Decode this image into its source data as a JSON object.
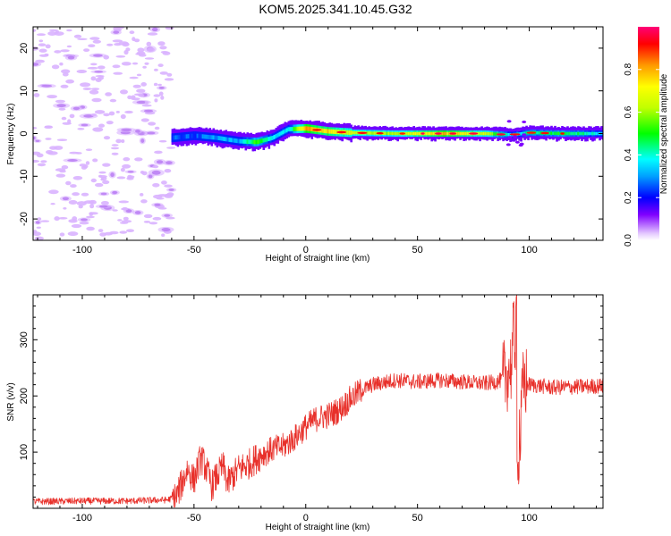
{
  "title": "KOM5.2025.341.10.45.G32",
  "chart_data": [
    {
      "type": "heatmap",
      "name": "spectrogram",
      "xlabel": "Height of straight line (km)",
      "ylabel": "Frequency (Hz)",
      "xlim": [
        -122,
        133
      ],
      "ylim": [
        -25,
        25
      ],
      "xticks": [
        -100,
        -50,
        0,
        50,
        100
      ],
      "yticks": [
        -20,
        -10,
        0,
        10,
        20
      ],
      "colorbar": {
        "label": "Normalized spectral amplitude",
        "range": [
          0,
          1
        ],
        "ticks": [
          0.0,
          0.2,
          0.4,
          0.6,
          0.8
        ]
      },
      "noise_region_x": [
        -122,
        -60
      ],
      "ridge": [
        {
          "x": -60,
          "f": -1.0,
          "amp": 0.25
        },
        {
          "x": -50,
          "f": -0.5,
          "amp": 0.25
        },
        {
          "x": -40,
          "f": -1.0,
          "amp": 0.3
        },
        {
          "x": -30,
          "f": -1.8,
          "amp": 0.3
        },
        {
          "x": -22,
          "f": -2.0,
          "amp": 0.55
        },
        {
          "x": -15,
          "f": -1.0,
          "amp": 0.35
        },
        {
          "x": -8,
          "f": 1.0,
          "amp": 0.35
        },
        {
          "x": 0,
          "f": 1.2,
          "amp": 0.8
        },
        {
          "x": 10,
          "f": 0.5,
          "amp": 0.75
        },
        {
          "x": 20,
          "f": 0.2,
          "amp": 0.65
        },
        {
          "x": 40,
          "f": 0.0,
          "amp": 0.6
        },
        {
          "x": 60,
          "f": 0.0,
          "amp": 0.8
        },
        {
          "x": 80,
          "f": 0.0,
          "amp": 0.65
        },
        {
          "x": 92,
          "f": -0.3,
          "amp": 0.35
        },
        {
          "x": 100,
          "f": 0.2,
          "amp": 0.45
        },
        {
          "x": 115,
          "f": 0.0,
          "amp": 0.5
        },
        {
          "x": 133,
          "f": 0.0,
          "amp": 0.35
        }
      ]
    },
    {
      "type": "line",
      "name": "snr",
      "xlabel": "Height of straight line (km)",
      "ylabel": "SNR (v/v)",
      "xlim": [
        -122,
        133
      ],
      "ylim": [
        0,
        380
      ],
      "xticks": [
        -100,
        -50,
        0,
        50,
        100
      ],
      "yticks": [
        100,
        200,
        300
      ],
      "color": "#e8302a",
      "series": [
        {
          "name": "SNR",
          "x": [
            -122,
            -100,
            -80,
            -62,
            -58,
            -55,
            -53,
            -50,
            -47,
            -45,
            -42,
            -40,
            -37,
            -35,
            -30,
            -25,
            -20,
            -15,
            -10,
            -5,
            0,
            5,
            10,
            15,
            20,
            25,
            30,
            40,
            50,
            60,
            70,
            80,
            85,
            88,
            90,
            92,
            93,
            94,
            95,
            96,
            97,
            98,
            100,
            105,
            110,
            120,
            133
          ],
          "y": [
            12,
            13,
            13,
            15,
            20,
            48,
            70,
            50,
            90,
            75,
            40,
            55,
            75,
            45,
            70,
            80,
            95,
            105,
            110,
            125,
            145,
            160,
            165,
            175,
            195,
            210,
            220,
            228,
            225,
            228,
            225,
            222,
            225,
            228,
            240,
            255,
            310,
            280,
            200,
            120,
            210,
            225,
            220,
            218,
            215,
            216,
            218
          ]
        }
      ]
    }
  ]
}
